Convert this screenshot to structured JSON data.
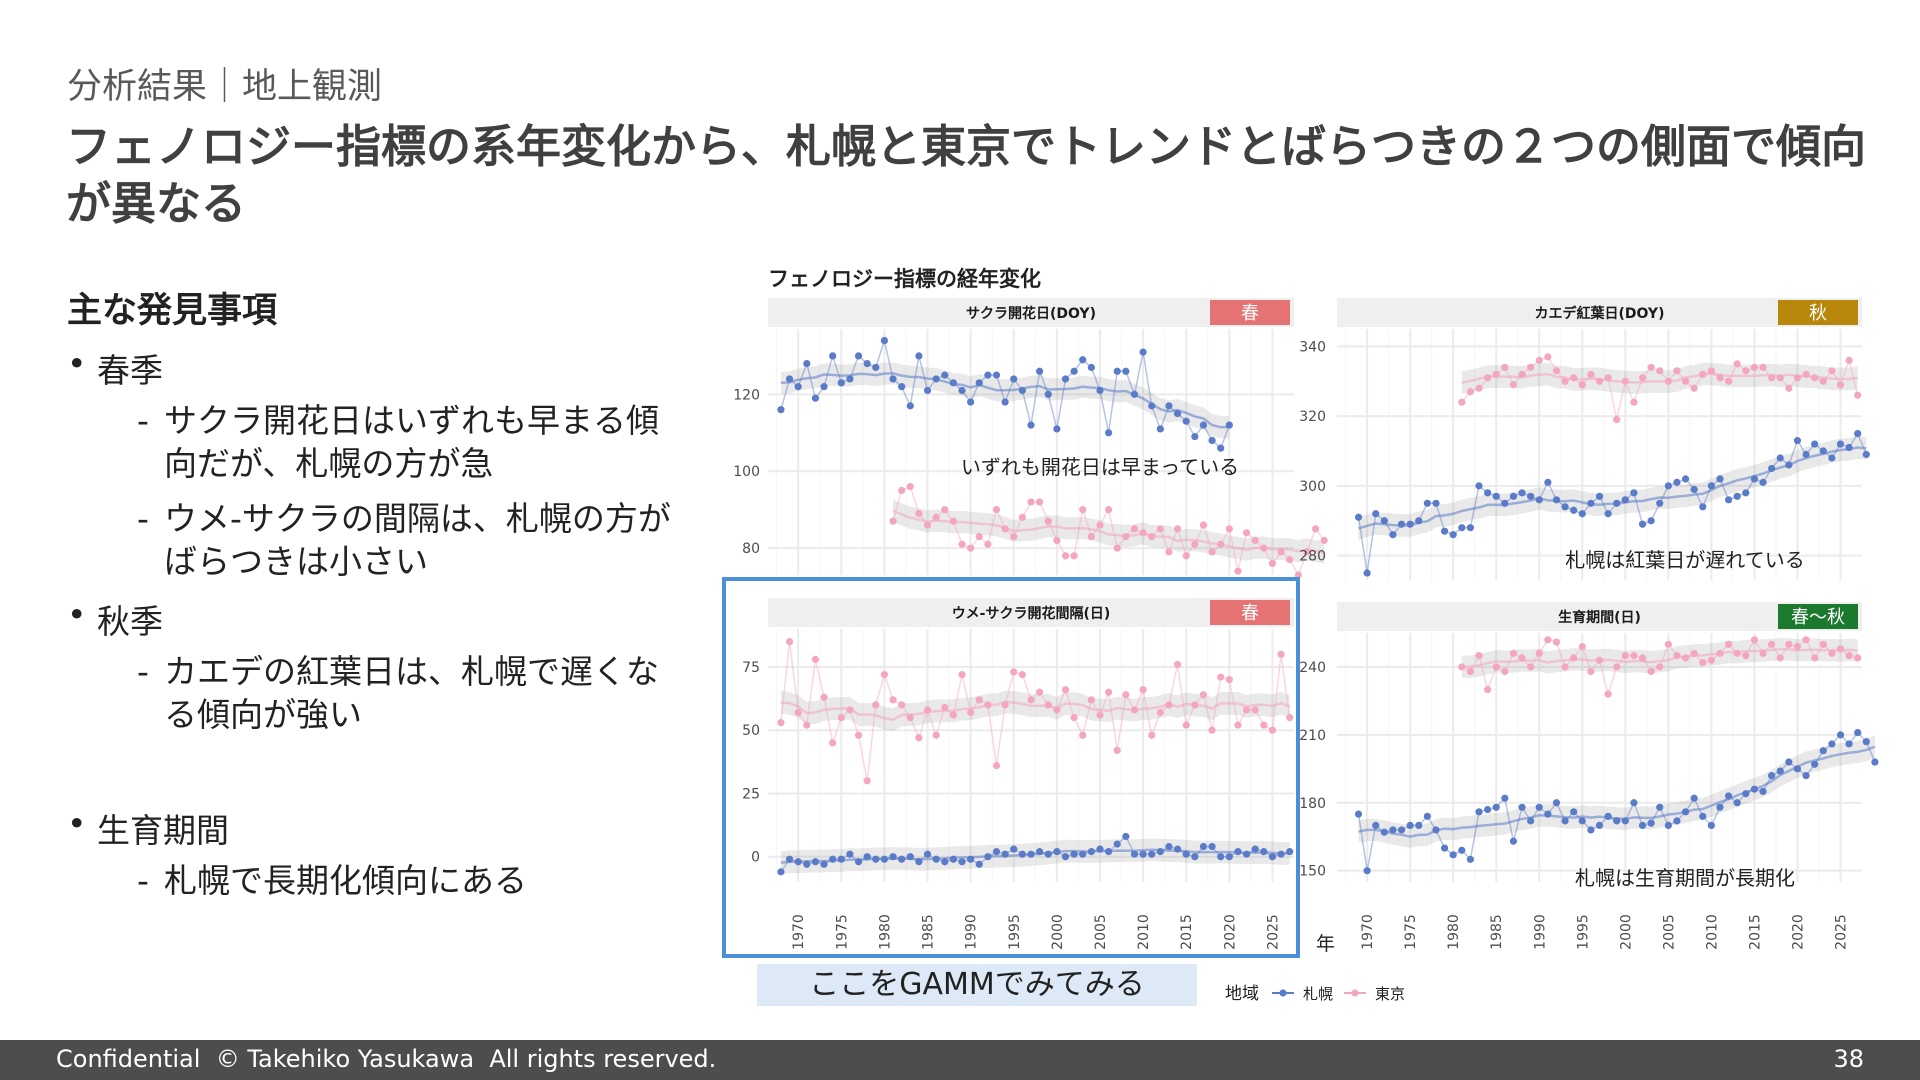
{
  "header": {
    "breadcrumb": "分析結果｜地上観測",
    "title": "フェノロジー指標の系年変化から、札幌と東京でトレンドとばらつきの２つの側面で傾向が異なる"
  },
  "findings": {
    "heading": "主な発見事項",
    "spring_label": "春季",
    "spring_item1": "サクラ開花日はいずれも早まる傾向だが、札幌の方が急",
    "spring_item2": "ウメ-サクラの間隔は、札幌の方がばらつきは小さい",
    "autumn_label": "秋季",
    "autumn_item1": "カエデの紅葉日は、札幌で遅くなる傾向が強い",
    "growth_label": "生育期間",
    "growth_item1": "札幌で長期化傾向にある"
  },
  "figure": {
    "title": "フェノロジー指標の経年変化",
    "focus_label": "ここをGAMMでみてみる"
  },
  "colors": {
    "sapporo": "#5a7bc8",
    "tokyo": "#f4a6bf",
    "spring": "#e57373",
    "autumn": "#b8860b",
    "growth": "#1b7a2e",
    "focus_box": "#4a90d9",
    "footer_bg": "#4d4d4d"
  },
  "chart_data": {
    "type": "line",
    "xlabel": "年",
    "legend": {
      "title": "地域",
      "placement": "bottom",
      "entries": [
        "札幌",
        "東京"
      ]
    },
    "x_ticks": [
      1970,
      1975,
      1980,
      1985,
      1990,
      1995,
      2000,
      2005,
      2010,
      2015,
      2020,
      2025
    ],
    "panels": [
      {
        "title": "サクラ開花日(DOY)",
        "season": "春",
        "season_color": "#e57373",
        "ylim": [
          73,
          137
        ],
        "yticks": [
          80,
          100,
          120
        ],
        "annotation": "いずれも開花日は早まっている",
        "series": [
          {
            "name": "札幌",
            "x_start": 1968,
            "values": [
              116,
              124,
              122,
              128,
              119,
              122,
              130,
              123,
              124,
              130,
              128,
              127,
              134,
              124,
              122,
              117,
              130,
              121,
              124,
              125,
              123,
              121,
              118,
              123,
              125,
              125,
              118,
              124,
              121,
              112,
              126,
              120,
              111,
              124,
              126,
              129,
              127,
              121,
              110,
              126,
              126,
              120,
              131,
              117,
              111,
              117,
              115,
              113,
              109,
              112,
              108,
              106,
              112
            ]
          },
          {
            "name": "東京",
            "x_start": 1981,
            "values": [
              87,
              95,
              96,
              89,
              86,
              88,
              90,
              87,
              81,
              80,
              83,
              81,
              90,
              85,
              83,
              88,
              92,
              92,
              87,
              82,
              78,
              78,
              90,
              83,
              86,
              90,
              80,
              83,
              85,
              84,
              83,
              85,
              79,
              85,
              78,
              81,
              86,
              79,
              81,
              85,
              74,
              84,
              82,
              80,
              76,
              79,
              77,
              73,
              79,
              85,
              82
            ]
          }
        ]
      },
      {
        "title": "カエデ紅葉日(DOY)",
        "season": "秋",
        "season_color": "#b8860b",
        "ylim": [
          273,
          345
        ],
        "yticks": [
          280,
          300,
          320,
          340
        ],
        "annotation": "札幌は紅葉日が遅れている",
        "series": [
          {
            "name": "札幌",
            "x_start": 1969,
            "values": [
              291,
              275,
              292,
              290,
              286,
              289,
              289,
              290,
              295,
              295,
              287,
              286,
              288,
              288,
              300,
              298,
              297,
              295,
              297,
              298,
              297,
              296,
              301,
              296,
              294,
              293,
              292,
              295,
              297,
              292,
              295,
              296,
              298,
              289,
              290,
              295,
              300,
              301,
              302,
              299,
              294,
              300,
              302,
              296,
              297,
              298,
              302,
              301,
              305,
              308,
              306,
              313,
              309,
              312,
              310,
              308,
              312,
              311,
              315,
              309
            ]
          },
          {
            "name": "東京",
            "x_start": 1981,
            "values": [
              324,
              327,
              328,
              331,
              332,
              334,
              329,
              332,
              334,
              336,
              337,
              333,
              330,
              331,
              329,
              332,
              330,
              331,
              319,
              330,
              324,
              331,
              334,
              333,
              330,
              333,
              330,
              328,
              332,
              333,
              331,
              330,
              335,
              333,
              334,
              334,
              331,
              331,
              328,
              331,
              332,
              331,
              330,
              333,
              329,
              336,
              326
            ]
          }
        ]
      },
      {
        "title": "ウメ-サクラ開花間隔(日)",
        "season": "春",
        "season_color": "#e57373",
        "ylim": [
          -10,
          90
        ],
        "yticks": [
          0,
          25,
          50,
          75
        ],
        "series": [
          {
            "name": "札幌",
            "x_start": 1968,
            "values": [
              -6,
              -1,
              -2,
              -3,
              -2,
              -3,
              -1,
              -1,
              1,
              -2,
              0,
              -1,
              -1,
              0,
              -1,
              0,
              -2,
              1,
              -1,
              -2,
              -1,
              -2,
              -1,
              -3,
              0,
              2,
              1,
              3,
              1,
              1,
              2,
              1,
              2,
              0,
              1,
              1,
              2,
              3,
              2,
              5,
              8,
              1,
              1,
              1,
              2,
              4,
              3,
              1,
              0,
              4,
              4,
              0,
              0,
              2,
              1,
              3,
              2,
              0,
              1,
              2
            ]
          },
          {
            "name": "東京",
            "x_start": 1968,
            "values": [
              53,
              85,
              57,
              52,
              78,
              63,
              45,
              55,
              58,
              48,
              30,
              60,
              72,
              62,
              60,
              55,
              47,
              58,
              48,
              59,
              56,
              72,
              57,
              62,
              60,
              36,
              60,
              73,
              72,
              62,
              65,
              60,
              58,
              66,
              55,
              48,
              62,
              56,
              65,
              42,
              64,
              58,
              66,
              48,
              57,
              60,
              76,
              52,
              60,
              64,
              50,
              71,
              70,
              52,
              58,
              58,
              52,
              50,
              80,
              55
            ]
          }
        ]
      },
      {
        "title": "生育期間(日)",
        "season": "春～秋",
        "season_color": "#1b7a2e",
        "ylim": [
          145,
          255
        ],
        "yticks": [
          150,
          180,
          210,
          240
        ],
        "annotation": "札幌は生育期間が長期化",
        "series": [
          {
            "name": "札幌",
            "x_start": 1969,
            "values": [
              175,
              150,
              170,
              167,
              168,
              168,
              170,
              170,
              174,
              168,
              160,
              157,
              159,
              155,
              176,
              177,
              178,
              182,
              163,
              178,
              172,
              178,
              175,
              180,
              172,
              176,
              172,
              168,
              170,
              174,
              172,
              172,
              180,
              170,
              171,
              178,
              170,
              172,
              176,
              182,
              174,
              170,
              178,
              183,
              180,
              184,
              186,
              185,
              192,
              194,
              198,
              195,
              192,
              197,
              203,
              206,
              210,
              206,
              211,
              207,
              198
            ]
          },
          {
            "name": "東京",
            "x_start": 1981,
            "values": [
              240,
              238,
              245,
              230,
              240,
              238,
              246,
              244,
              240,
              246,
              252,
              251,
              240,
              244,
              249,
              238,
              243,
              228,
              240,
              245,
              245,
              244,
              238,
              240,
              250,
              245,
              244,
              246,
              242,
              243,
              246,
              250,
              246,
              245,
              252,
              246,
              250,
              244,
              250,
              249,
              252,
              244,
              250,
              246,
              248,
              245,
              244
            ]
          }
        ]
      }
    ]
  },
  "footer": {
    "copyright": "Confidential  © Takehiko Yasukawa  All rights reserved.",
    "page_number": "38"
  }
}
